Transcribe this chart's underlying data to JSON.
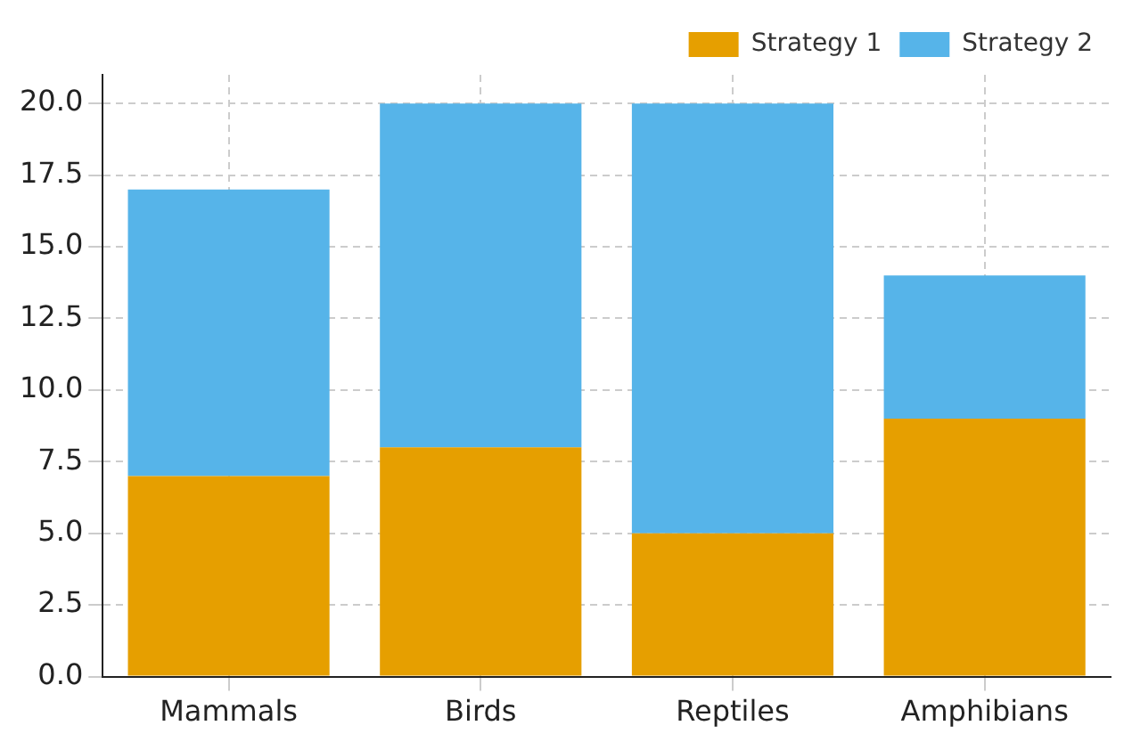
{
  "chart_data": {
    "type": "bar",
    "stacked": true,
    "categories": [
      "Mammals",
      "Birds",
      "Reptiles",
      "Amphibians"
    ],
    "series": [
      {
        "name": "Strategy 1",
        "color": "#e69f00",
        "values": [
          7,
          8,
          5,
          9
        ]
      },
      {
        "name": "Strategy 2",
        "color": "#56b4e9",
        "values": [
          10,
          12,
          15,
          5
        ]
      }
    ],
    "ylim": [
      0,
      21
    ],
    "yticks": [
      {
        "value": 0,
        "label": "0.0"
      },
      {
        "value": 2.5,
        "label": "2.5"
      },
      {
        "value": 5,
        "label": "5.0"
      },
      {
        "value": 7.5,
        "label": "7.5"
      },
      {
        "value": 10,
        "label": "10.0"
      },
      {
        "value": 12.5,
        "label": "12.5"
      },
      {
        "value": 15,
        "label": "15.0"
      },
      {
        "value": 17.5,
        "label": "17.5"
      },
      {
        "value": 20,
        "label": "20.0"
      }
    ],
    "grid": true,
    "legend": "top right"
  }
}
